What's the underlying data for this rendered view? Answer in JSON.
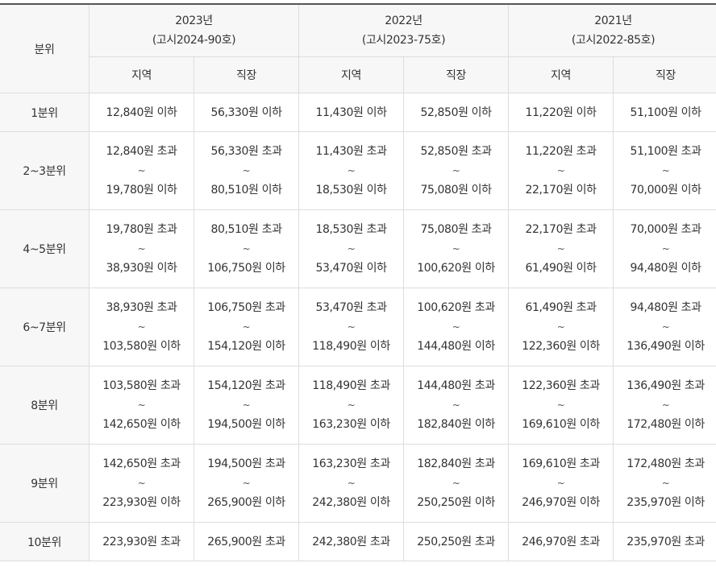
{
  "table": {
    "corner_label": "분위",
    "years": [
      {
        "year": "2023년",
        "notice": "(고시2024-90호)"
      },
      {
        "year": "2022년",
        "notice": "(고시2023-75호)"
      },
      {
        "year": "2021년",
        "notice": "(고시2022-85호)"
      }
    ],
    "sub_headers": [
      "지역",
      "직장",
      "지역",
      "직장",
      "지역",
      "직장"
    ],
    "tilde": "~",
    "rows": [
      {
        "label": "1분위",
        "cells": [
          [
            "12,840원 이하"
          ],
          [
            "56,330원 이하"
          ],
          [
            "11,430원 이하"
          ],
          [
            "52,850원 이하"
          ],
          [
            "11,220원 이하"
          ],
          [
            "51,100원 이하"
          ]
        ]
      },
      {
        "label": "2~3분위",
        "cells": [
          [
            "12,840원 초과",
            "19,780원 이하"
          ],
          [
            "56,330원 초과",
            "80,510원 이하"
          ],
          [
            "11,430원 초과",
            "18,530원 이하"
          ],
          [
            "52,850원 초과",
            "75,080원 이하"
          ],
          [
            "11,220원 초과",
            "22,170원 이하"
          ],
          [
            "51,100원 초과",
            "70,000원 이하"
          ]
        ]
      },
      {
        "label": "4~5분위",
        "cells": [
          [
            "19,780원 초과",
            "38,930원 이하"
          ],
          [
            "80,510원 초과",
            "106,750원 이하"
          ],
          [
            "18,530원 초과",
            "53,470원 이하"
          ],
          [
            "75,080원 초과",
            "100,620원 이하"
          ],
          [
            "22,170원 초과",
            "61,490원 이하"
          ],
          [
            "70,000원 초과",
            "94,480원 이하"
          ]
        ]
      },
      {
        "label": "6~7분위",
        "cells": [
          [
            "38,930원 초과",
            "103,580원 이하"
          ],
          [
            "106,750원 초과",
            "154,120원 이하"
          ],
          [
            "53,470원 초과",
            "118,490원 이하"
          ],
          [
            "100,620원 초과",
            "144,480원 이하"
          ],
          [
            "61,490원 초과",
            "122,360원 이하"
          ],
          [
            "94,480원 초과",
            "136,490원 이하"
          ]
        ]
      },
      {
        "label": "8분위",
        "cells": [
          [
            "103,580원 초과",
            "142,650원 이하"
          ],
          [
            "154,120원 초과",
            "194,500원 이하"
          ],
          [
            "118,490원 초과",
            "163,230원 이하"
          ],
          [
            "144,480원 초과",
            "182,840원 이하"
          ],
          [
            "122,360원 초과",
            "169,610원 이하"
          ],
          [
            "136,490원 초과",
            "172,480원 이하"
          ]
        ]
      },
      {
        "label": "9분위",
        "cells": [
          [
            "142,650원 초과",
            "223,930원 이하"
          ],
          [
            "194,500원 초과",
            "265,900원 이하"
          ],
          [
            "163,230원 초과",
            "242,380원 이하"
          ],
          [
            "182,840원 초과",
            "250,250원 이하"
          ],
          [
            "169,610원 초과",
            "246,970원 이하"
          ],
          [
            "172,480원 초과",
            "235,970원 이하"
          ]
        ]
      },
      {
        "label": "10분위",
        "cells": [
          [
            "223,930원 초과"
          ],
          [
            "265,900원 초과"
          ],
          [
            "242,380원 초과"
          ],
          [
            "250,250원 초과"
          ],
          [
            "246,970원 초과"
          ],
          [
            "235,970원 초과"
          ]
        ]
      }
    ]
  }
}
